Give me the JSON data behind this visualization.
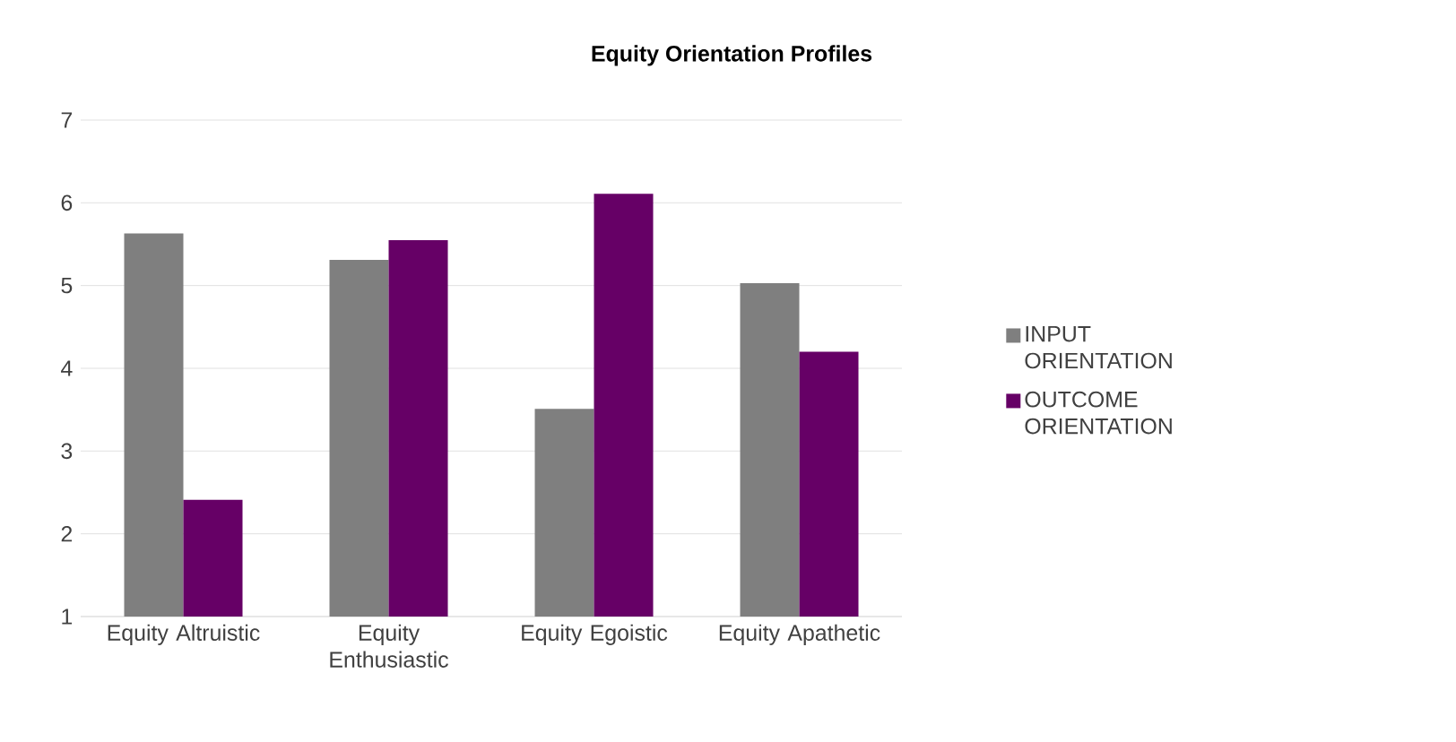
{
  "chart_data": {
    "type": "bar",
    "title": "Equity Orientation Profiles",
    "categories": [
      "Equity Altruistic",
      "Equity Enthusiastic",
      "Equity Egoistic",
      "Equity Apathetic"
    ],
    "series": [
      {
        "name": "INPUT ORIENTATION",
        "color": "#7f7f7f",
        "values": [
          5.63,
          5.31,
          3.51,
          5.03
        ]
      },
      {
        "name": "OUTCOME ORIENTATION",
        "color": "#660066",
        "values": [
          2.41,
          5.55,
          6.11,
          4.2
        ]
      }
    ],
    "ylim": [
      1,
      7
    ],
    "yticks": [
      1,
      2,
      3,
      4,
      5,
      6,
      7
    ],
    "grid": "y",
    "legend": "right"
  }
}
